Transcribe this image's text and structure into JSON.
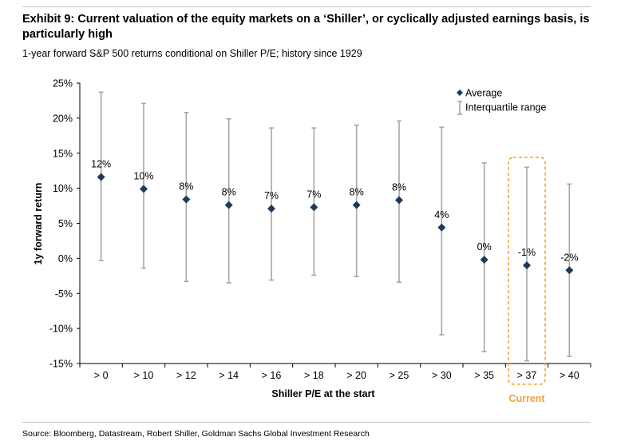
{
  "title": "Exhibit 9: Current valuation of the equity markets on a ‘Shiller’, or cyclically adjusted earnings basis, is particularly high",
  "subtitle": "1-year forward S&P 500 returns conditional on Shiller P/E; history since 1929",
  "source": "Source: Bloomberg, Datastream, Robert Shiller, Goldman Sachs Global Investment Research",
  "colors": {
    "marker": "#1f3b5a",
    "range": "#a6a6a6",
    "highlight": "#f4a13b",
    "current_text": "#f4a13b"
  },
  "chart_data": {
    "type": "scatter",
    "xlabel": "Shiller P/E at the start",
    "ylabel": "1y forward return",
    "ylim": [
      -15,
      25
    ],
    "yticks": [
      -15,
      -10,
      -5,
      0,
      5,
      10,
      15,
      20,
      25
    ],
    "ytick_labels": [
      "-15%",
      "-10%",
      "-5%",
      "0%",
      "5%",
      "10%",
      "15%",
      "20%",
      "25%"
    ],
    "categories": [
      "> 0",
      "> 10",
      "> 12",
      "> 14",
      "> 16",
      "> 18",
      "> 20",
      "> 25",
      "> 30",
      "> 35",
      "> 37",
      "> 40"
    ],
    "average": [
      11.6,
      9.9,
      8.4,
      7.6,
      7.1,
      7.3,
      7.6,
      8.3,
      4.4,
      -0.2,
      -1.0,
      -1.7
    ],
    "labels": [
      "12%",
      "10%",
      "8%",
      "8%",
      "7%",
      "7%",
      "8%",
      "8%",
      "4%",
      "0%",
      "-1%",
      "-2%"
    ],
    "iqr_low": [
      -0.3,
      -1.4,
      -3.3,
      -3.5,
      -3.1,
      -2.4,
      -2.6,
      -3.4,
      -10.9,
      -13.3,
      -14.6,
      -14.0
    ],
    "iqr_high": [
      23.7,
      22.1,
      20.8,
      19.9,
      18.6,
      18.6,
      19.0,
      19.6,
      18.7,
      13.6,
      13.0,
      10.6
    ],
    "legend": [
      "Average",
      "Interquartile range"
    ],
    "legend_position": "top-right",
    "highlight_category": "> 37",
    "highlight_label": "Current",
    "grid": false
  }
}
